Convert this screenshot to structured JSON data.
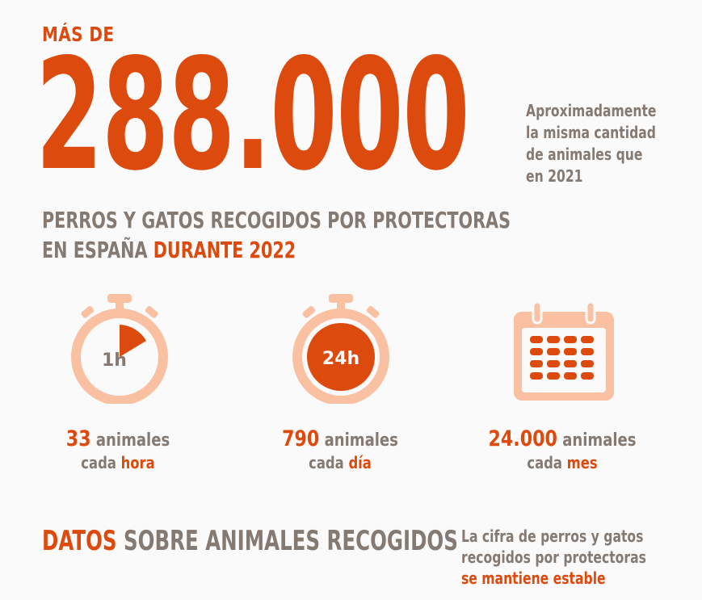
{
  "header": {
    "prefix": "MÁS DE",
    "big_number": "288.000",
    "side_note_lines": [
      "Aproximadamente",
      "la misma cantidad",
      "de animales que",
      "en 2021"
    ]
  },
  "headline": {
    "line1": "PERROS Y GATOS RECOGIDOS POR PROTECTORAS",
    "line2_start": "EN ESPAÑA ",
    "line2_highlight_word": "DURANTE",
    "line2_highlight_year": " 2022"
  },
  "stats": [
    {
      "icon": "stopwatch-hour-icon",
      "icon_label": "1h",
      "number": "33",
      "unit": " animales",
      "per": "cada ",
      "period": "hora"
    },
    {
      "icon": "stopwatch-day-icon",
      "icon_label": "24h",
      "number": "790",
      "unit": " animales",
      "per": "cada ",
      "period": "día"
    },
    {
      "icon": "calendar-icon",
      "number": "24.000",
      "unit": " animales",
      "per": "cada ",
      "period": "mes"
    }
  ],
  "footer": {
    "title_highlight": "DATOS",
    "title_rest": " SOBRE ANIMALES RECOGIDOS",
    "note_line1": "La cifra de perros y gatos",
    "note_line2": "recogidos por protectoras",
    "note_highlight": "se mantiene estable"
  },
  "colors": {
    "accent": "#dd4a0e",
    "light_accent": "#f9c1a1",
    "text_grey": "#857a72",
    "background": "#fbfafa"
  }
}
